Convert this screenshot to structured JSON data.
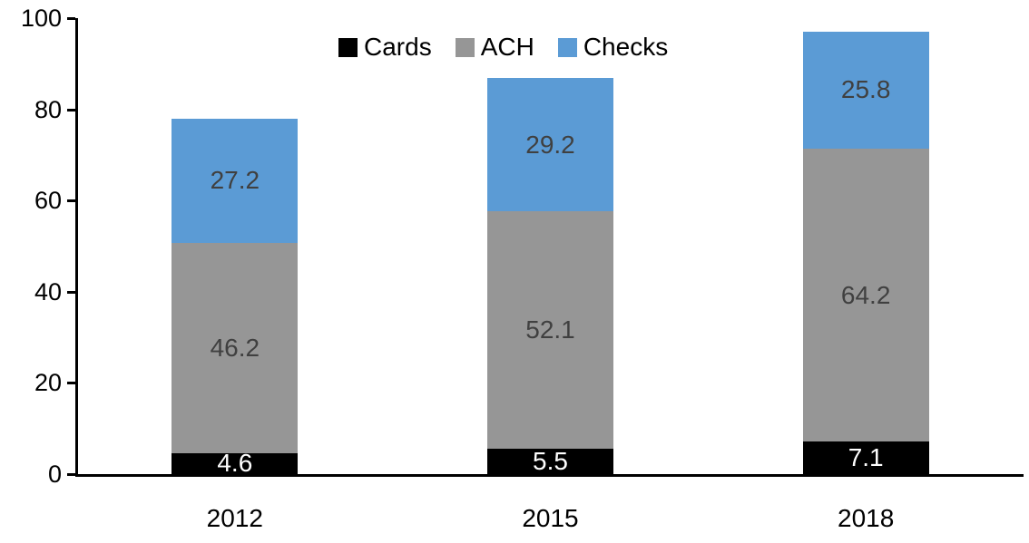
{
  "chart_data": {
    "type": "bar",
    "stacked": true,
    "title": "",
    "xlabel": "",
    "ylabel": "",
    "categories": [
      "2012",
      "2015",
      "2018"
    ],
    "series": [
      {
        "name": "Cards",
        "color": "#000000",
        "label_color": "#ffffff",
        "values": [
          4.6,
          5.5,
          7.1
        ]
      },
      {
        "name": "ACH",
        "color": "#969696",
        "label_color": "#404040",
        "values": [
          46.2,
          52.1,
          64.2
        ]
      },
      {
        "name": "Checks",
        "color": "#5b9bd5",
        "label_color": "#404040",
        "values": [
          27.2,
          29.2,
          25.8
        ]
      }
    ],
    "y_ticks": [
      "0",
      "20",
      "40",
      "60",
      "80",
      "100"
    ],
    "y_tick_values": [
      0,
      20,
      40,
      60,
      80,
      100
    ],
    "ylim": [
      0,
      100
    ],
    "grid": false,
    "legend_position": "top",
    "axis_color": "#000000"
  }
}
